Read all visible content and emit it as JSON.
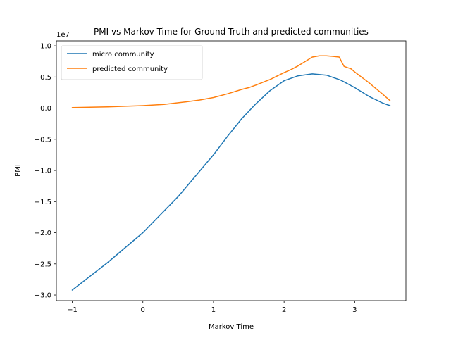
{
  "chart_data": {
    "type": "line",
    "title": "PMI vs Markov Time for Ground Truth and predicted communities",
    "xlabel": "Markov Time",
    "ylabel": "PMI",
    "y_offset_label": "1e7",
    "xlim": [
      -1.225,
      3.725
    ],
    "ylim": [
      -3.09,
      1.08
    ],
    "xticks": [
      -1,
      0,
      1,
      2,
      3
    ],
    "xtick_labels": [
      "−1",
      "0",
      "1",
      "2",
      "3"
    ],
    "yticks": [
      -3.0,
      -2.5,
      -2.0,
      -1.5,
      -1.0,
      -0.5,
      0.0,
      0.5,
      1.0
    ],
    "ytick_labels": [
      "−3.0",
      "−2.5",
      "−2.0",
      "−1.5",
      "−1.0",
      "−0.5",
      "0.0",
      "0.5",
      "1.0"
    ],
    "grid": false,
    "legend_position": "top-left",
    "series": [
      {
        "name": "micro community",
        "color": "#1f77b4",
        "x": [
          -1.0,
          -0.5,
          0.0,
          0.5,
          1.0,
          1.2,
          1.4,
          1.6,
          1.8,
          2.0,
          2.2,
          2.4,
          2.6,
          2.8,
          3.0,
          3.2,
          3.4,
          3.5
        ],
        "y": [
          -2.92,
          -2.48,
          -2.0,
          -1.42,
          -0.75,
          -0.45,
          -0.17,
          0.07,
          0.28,
          0.44,
          0.52,
          0.55,
          0.53,
          0.45,
          0.33,
          0.19,
          0.08,
          0.04
        ]
      },
      {
        "name": "predicted community",
        "color": "#ff7f0e",
        "x": [
          -1.0,
          -0.5,
          0.0,
          0.3,
          0.6,
          0.8,
          1.0,
          1.2,
          1.4,
          1.5,
          1.6,
          1.8,
          2.0,
          2.1,
          2.2,
          2.3,
          2.4,
          2.5,
          2.6,
          2.7,
          2.78,
          2.85,
          2.95,
          3.0,
          3.2,
          3.4,
          3.5
        ],
        "y": [
          0.01,
          0.02,
          0.04,
          0.06,
          0.1,
          0.13,
          0.17,
          0.23,
          0.3,
          0.33,
          0.37,
          0.46,
          0.57,
          0.62,
          0.68,
          0.75,
          0.82,
          0.84,
          0.84,
          0.83,
          0.82,
          0.67,
          0.63,
          0.58,
          0.41,
          0.22,
          0.12
        ]
      }
    ]
  }
}
